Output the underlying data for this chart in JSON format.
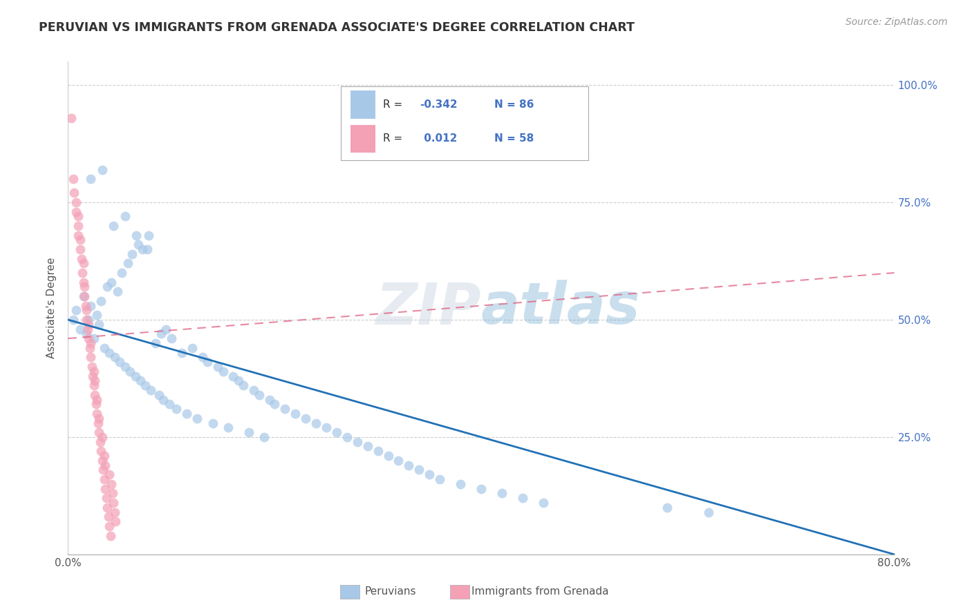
{
  "title": "PERUVIAN VS IMMIGRANTS FROM GRENADA ASSOCIATE'S DEGREE CORRELATION CHART",
  "source": "Source: ZipAtlas.com",
  "ylabel": "Associate's Degree",
  "watermark": "ZIPatlas",
  "blue_color": "#a8c8e8",
  "pink_color": "#f4a0b5",
  "blue_line_color": "#2171b5",
  "pink_line_color": "#e06080",
  "xlim": [
    0.0,
    0.8
  ],
  "ylim": [
    0.0,
    1.05
  ],
  "blue_line_x0": 0.0,
  "blue_line_y0": 0.5,
  "blue_line_x1": 0.8,
  "blue_line_y1": 0.0,
  "pink_line_x0": 0.0,
  "pink_line_y0": 0.46,
  "pink_line_x1": 0.8,
  "pink_line_y1": 0.6,
  "peruvian_x": [
    0.005,
    0.008,
    0.012,
    0.015,
    0.018,
    0.02,
    0.022,
    0.025,
    0.028,
    0.03,
    0.032,
    0.035,
    0.038,
    0.04,
    0.042,
    0.045,
    0.048,
    0.05,
    0.052,
    0.055,
    0.058,
    0.06,
    0.062,
    0.065,
    0.068,
    0.07,
    0.072,
    0.075,
    0.078,
    0.08,
    0.085,
    0.088,
    0.09,
    0.092,
    0.095,
    0.098,
    0.1,
    0.105,
    0.11,
    0.115,
    0.12,
    0.125,
    0.13,
    0.135,
    0.14,
    0.145,
    0.15,
    0.155,
    0.16,
    0.165,
    0.17,
    0.175,
    0.18,
    0.185,
    0.19,
    0.195,
    0.2,
    0.21,
    0.22,
    0.23,
    0.24,
    0.25,
    0.26,
    0.27,
    0.28,
    0.29,
    0.3,
    0.31,
    0.32,
    0.33,
    0.34,
    0.35,
    0.36,
    0.38,
    0.4,
    0.42,
    0.44,
    0.46,
    0.58,
    0.62,
    0.022,
    0.033,
    0.044,
    0.055,
    0.066,
    0.077
  ],
  "peruvian_y": [
    0.5,
    0.52,
    0.48,
    0.55,
    0.47,
    0.5,
    0.53,
    0.46,
    0.51,
    0.49,
    0.54,
    0.44,
    0.57,
    0.43,
    0.58,
    0.42,
    0.56,
    0.41,
    0.6,
    0.4,
    0.62,
    0.39,
    0.64,
    0.38,
    0.66,
    0.37,
    0.65,
    0.36,
    0.68,
    0.35,
    0.45,
    0.34,
    0.47,
    0.33,
    0.48,
    0.32,
    0.46,
    0.31,
    0.43,
    0.3,
    0.44,
    0.29,
    0.42,
    0.41,
    0.28,
    0.4,
    0.39,
    0.27,
    0.38,
    0.37,
    0.36,
    0.26,
    0.35,
    0.34,
    0.25,
    0.33,
    0.32,
    0.31,
    0.3,
    0.29,
    0.28,
    0.27,
    0.26,
    0.25,
    0.24,
    0.23,
    0.22,
    0.21,
    0.2,
    0.19,
    0.18,
    0.17,
    0.16,
    0.15,
    0.14,
    0.13,
    0.12,
    0.11,
    0.1,
    0.09,
    0.8,
    0.82,
    0.7,
    0.72,
    0.68,
    0.65
  ],
  "grenada_x": [
    0.003,
    0.005,
    0.006,
    0.008,
    0.008,
    0.01,
    0.01,
    0.01,
    0.012,
    0.012,
    0.013,
    0.014,
    0.015,
    0.015,
    0.016,
    0.016,
    0.017,
    0.018,
    0.018,
    0.019,
    0.02,
    0.02,
    0.021,
    0.022,
    0.022,
    0.023,
    0.024,
    0.025,
    0.025,
    0.026,
    0.026,
    0.027,
    0.028,
    0.028,
    0.029,
    0.03,
    0.03,
    0.031,
    0.032,
    0.033,
    0.033,
    0.034,
    0.035,
    0.035,
    0.036,
    0.036,
    0.037,
    0.038,
    0.039,
    0.04,
    0.04,
    0.041,
    0.042,
    0.043,
    0.044,
    0.045,
    0.046
  ],
  "grenada_y": [
    0.93,
    0.8,
    0.77,
    0.73,
    0.75,
    0.68,
    0.7,
    0.72,
    0.65,
    0.67,
    0.63,
    0.6,
    0.58,
    0.62,
    0.55,
    0.57,
    0.53,
    0.5,
    0.52,
    0.48,
    0.46,
    0.49,
    0.44,
    0.42,
    0.45,
    0.4,
    0.38,
    0.36,
    0.39,
    0.34,
    0.37,
    0.32,
    0.3,
    0.33,
    0.28,
    0.26,
    0.29,
    0.24,
    0.22,
    0.2,
    0.25,
    0.18,
    0.16,
    0.21,
    0.14,
    0.19,
    0.12,
    0.1,
    0.08,
    0.06,
    0.17,
    0.04,
    0.15,
    0.13,
    0.11,
    0.09,
    0.07
  ]
}
